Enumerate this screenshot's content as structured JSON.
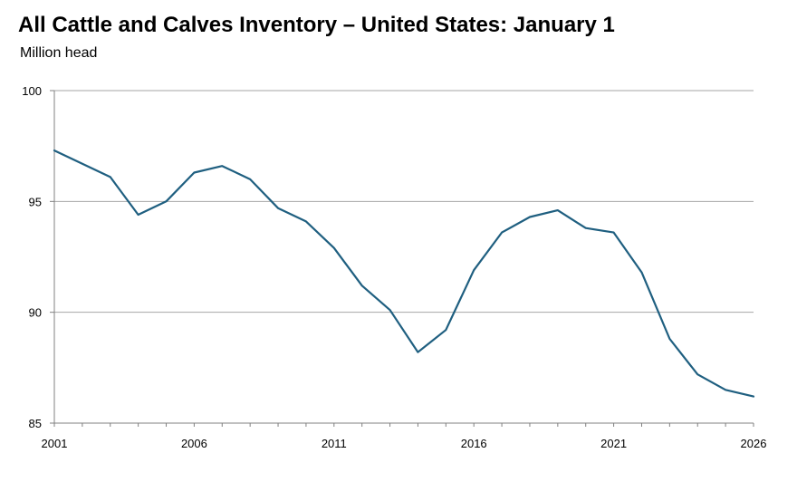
{
  "chart_data": {
    "type": "line",
    "title": "All Cattle and Calves Inventory – United States: January 1",
    "subtitle": "Million head",
    "xlabel": "",
    "ylabel": "",
    "xlim": [
      2001,
      2026
    ],
    "ylim": [
      85,
      100
    ],
    "x_ticks": [
      "2001",
      "2006",
      "2011",
      "2016",
      "2021",
      "2026"
    ],
    "y_ticks": [
      "85",
      "90",
      "95",
      "100"
    ],
    "grid": true,
    "legend": "none",
    "line_color": "#1f5f80",
    "series": [
      {
        "x": [
          2001,
          2002,
          2003,
          2004,
          2005,
          2006,
          2007,
          2008,
          2009,
          2010,
          2011,
          2012,
          2013,
          2014,
          2015,
          2016,
          2017,
          2018,
          2019,
          2020,
          2021,
          2022,
          2023,
          2024,
          2025,
          2026
        ],
        "values": [
          97.3,
          96.7,
          96.1,
          94.4,
          95.0,
          96.3,
          96.6,
          96.0,
          94.7,
          94.1,
          92.9,
          91.2,
          90.1,
          88.2,
          89.2,
          91.9,
          93.6,
          94.3,
          94.6,
          93.8,
          93.6,
          91.8,
          88.8,
          87.2,
          86.5,
          86.2
        ]
      }
    ]
  }
}
